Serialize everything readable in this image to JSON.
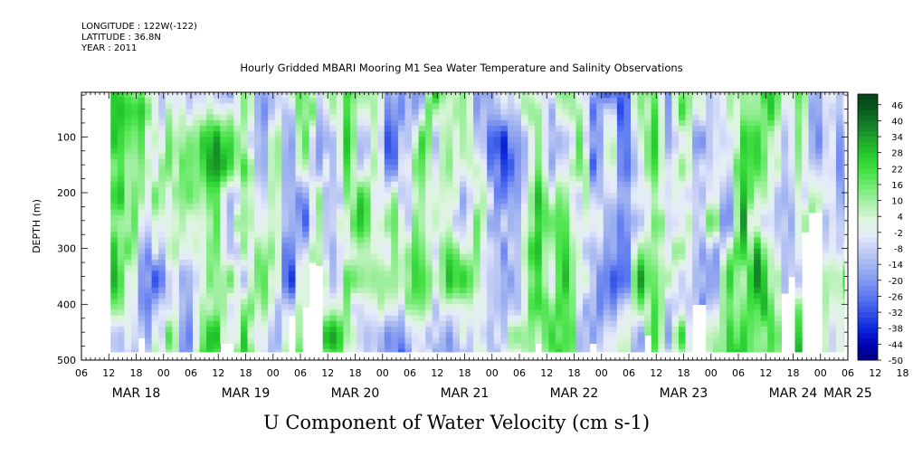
{
  "header": {
    "longitude": "LONGITUDE : 122W(-122)",
    "latitude": "LATITUDE : 36.8N",
    "year": "YEAR : 2011"
  },
  "chart_data": {
    "type": "heatmap",
    "title": "Hourly Gridded MBARI Mooring M1 Sea Water Temperature and Salinity Observations",
    "subtitle": "U Component of Water Velocity (cm s-1)",
    "ylabel": "DEPTH (m)",
    "y_range": [
      20,
      500
    ],
    "y_inverted": true,
    "y_ticks": [
      100,
      200,
      300,
      400,
      500
    ],
    "x_hour_range": [
      0,
      168
    ],
    "x_ticks": [
      "06",
      "12",
      "18",
      "00",
      "06",
      "12",
      "18",
      "00",
      "06",
      "12",
      "18",
      "00",
      "06",
      "12",
      "18",
      "00",
      "06",
      "12",
      "18",
      "00",
      "06",
      "12",
      "18",
      "00",
      "06",
      "12",
      "18",
      "00",
      "06",
      "12",
      "18",
      "00",
      "06"
    ],
    "x_day_labels": [
      "MAR 18",
      "MAR 19",
      "MAR 20",
      "MAR 21",
      "MAR 22",
      "MAR 23",
      "MAR 24",
      "MAR 25"
    ],
    "colorbar": {
      "ticks": [
        46,
        40,
        34,
        28,
        22,
        16,
        10,
        4,
        -2,
        -8,
        -14,
        -20,
        -26,
        -32,
        -38,
        -44,
        -50
      ],
      "range": [
        -50,
        50
      ],
      "colors": [
        "#000080",
        "#0000b4",
        "#0a28dc",
        "#3250e6",
        "#5a78f0",
        "#8296f0",
        "#a0b4f0",
        "#c3cdf5",
        "#e6ebfa",
        "#dcf5dc",
        "#aaf0aa",
        "#78eb78",
        "#46e146",
        "#28cd32",
        "#1eaa28",
        "#14822a",
        "#0a5a1e",
        "#05421a"
      ]
    },
    "value_scale": "color by U velocity; positive (eastward) green, negative (westward) blue"
  }
}
